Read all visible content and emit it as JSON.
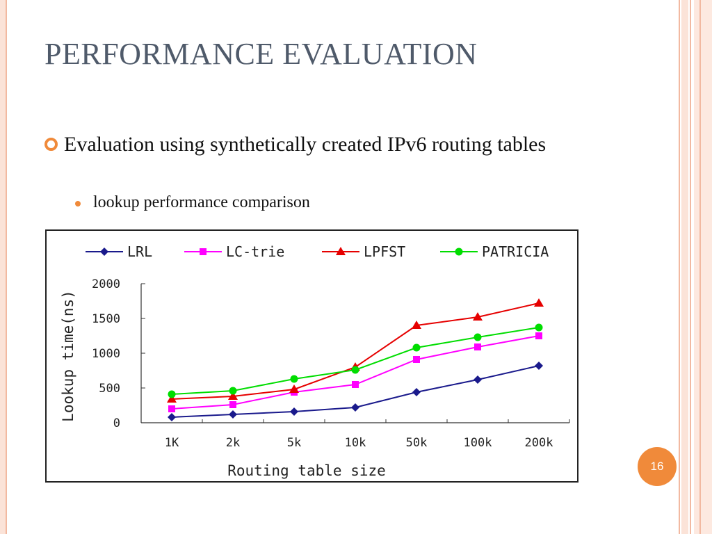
{
  "slide": {
    "title": "PERFORMANCE EVALUATION",
    "bullet_main": "Evaluation using synthetically created IPv6 routing tables",
    "bullet_sub": "lookup performance comparison",
    "page_number": "16",
    "accent_color": "#f08a3a"
  },
  "chart_data": {
    "type": "line",
    "categories": [
      "1K",
      "2k",
      "5k",
      "10k",
      "50k",
      "100k",
      "200k"
    ],
    "xlabel": "Routing table size",
    "ylabel": "Lookup time(ns)",
    "ylim": [
      0,
      2000
    ],
    "yticks": [
      "0",
      "500",
      "1000",
      "1500",
      "2000"
    ],
    "legend_position": "top",
    "series": [
      {
        "name": "LRL",
        "color": "#1a1a8c",
        "marker": "diamond",
        "values": [
          80,
          120,
          160,
          220,
          440,
          620,
          820
        ]
      },
      {
        "name": "LC-trie",
        "color": "#ff00ff",
        "marker": "square",
        "values": [
          200,
          260,
          440,
          550,
          910,
          1090,
          1250
        ]
      },
      {
        "name": "LPFST",
        "color": "#e60000",
        "marker": "triangle",
        "values": [
          340,
          380,
          480,
          800,
          1400,
          1520,
          1720
        ]
      },
      {
        "name": "PATRICIA",
        "color": "#00dd00",
        "marker": "circle",
        "values": [
          410,
          460,
          630,
          760,
          1080,
          1230,
          1370
        ]
      }
    ]
  }
}
